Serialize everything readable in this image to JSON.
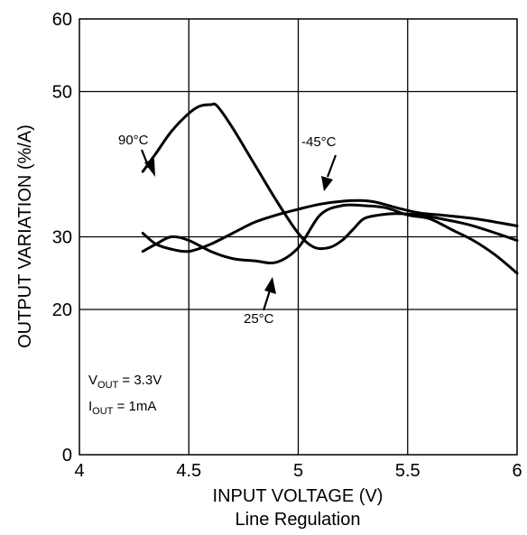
{
  "chart_data": {
    "type": "line",
    "title": "Line Regulation",
    "xlabel": "INPUT VOLTAGE (V)",
    "ylabel": "OUTPUT VARIATION (%/A)",
    "xlim": [
      4,
      6
    ],
    "ylim": [
      0,
      60
    ],
    "x_ticks": [
      "4",
      "4.5",
      "5",
      "5.5",
      "6"
    ],
    "y_ticks": [
      "0",
      "20",
      "30",
      "50",
      "60"
    ],
    "grid": true,
    "series": [
      {
        "name": "90°C",
        "x": [
          4.29,
          4.35,
          4.42,
          4.5,
          4.55,
          4.6,
          4.63,
          4.7,
          4.8,
          4.9,
          5.0,
          5.07,
          5.14,
          5.2,
          5.25,
          5.3,
          5.37,
          5.45,
          5.55,
          5.65,
          5.8,
          6.0
        ],
        "y": [
          39.0,
          41.5,
          44.5,
          47.0,
          48.0,
          48.2,
          48.0,
          45.0,
          40.0,
          35.0,
          30.5,
          28.6,
          28.5,
          29.5,
          31.0,
          32.5,
          33.0,
          33.2,
          33.0,
          32.5,
          31.5,
          29.5
        ]
      },
      {
        "name": "-45°C",
        "x": [
          4.29,
          4.35,
          4.42,
          4.5,
          4.6,
          4.7,
          4.8,
          4.9,
          5.0,
          5.1,
          5.2,
          5.3,
          5.4,
          5.5,
          5.6,
          5.7,
          5.8,
          5.9,
          6.0
        ],
        "y": [
          28.0,
          29.0,
          30.0,
          29.5,
          28.0,
          27.0,
          26.7,
          26.5,
          28.5,
          33.0,
          34.3,
          34.3,
          34.0,
          33.0,
          32.5,
          31.0,
          29.5,
          27.5,
          25.0
        ]
      },
      {
        "name": "25°C",
        "x": [
          4.29,
          4.35,
          4.42,
          4.5,
          4.6,
          4.7,
          4.8,
          4.9,
          5.0,
          5.1,
          5.2,
          5.28,
          5.35,
          5.45,
          5.55,
          5.65,
          5.75,
          5.85,
          6.0
        ],
        "y": [
          30.5,
          29.0,
          28.3,
          28.0,
          29.0,
          30.5,
          32.0,
          33.0,
          33.8,
          34.5,
          34.9,
          35.0,
          34.8,
          34.0,
          33.3,
          33.0,
          32.7,
          32.3,
          31.5
        ]
      }
    ],
    "annotations": [
      {
        "text": "90°C"
      },
      {
        "text": "-45°C"
      },
      {
        "text": "25°C"
      }
    ],
    "conditions": {
      "vout": {
        "main": "V",
        "sub": "OUT",
        "rest": " = 3.3V"
      },
      "iout": {
        "main": "I",
        "sub": "OUT",
        "rest": " = 1mA"
      }
    }
  }
}
